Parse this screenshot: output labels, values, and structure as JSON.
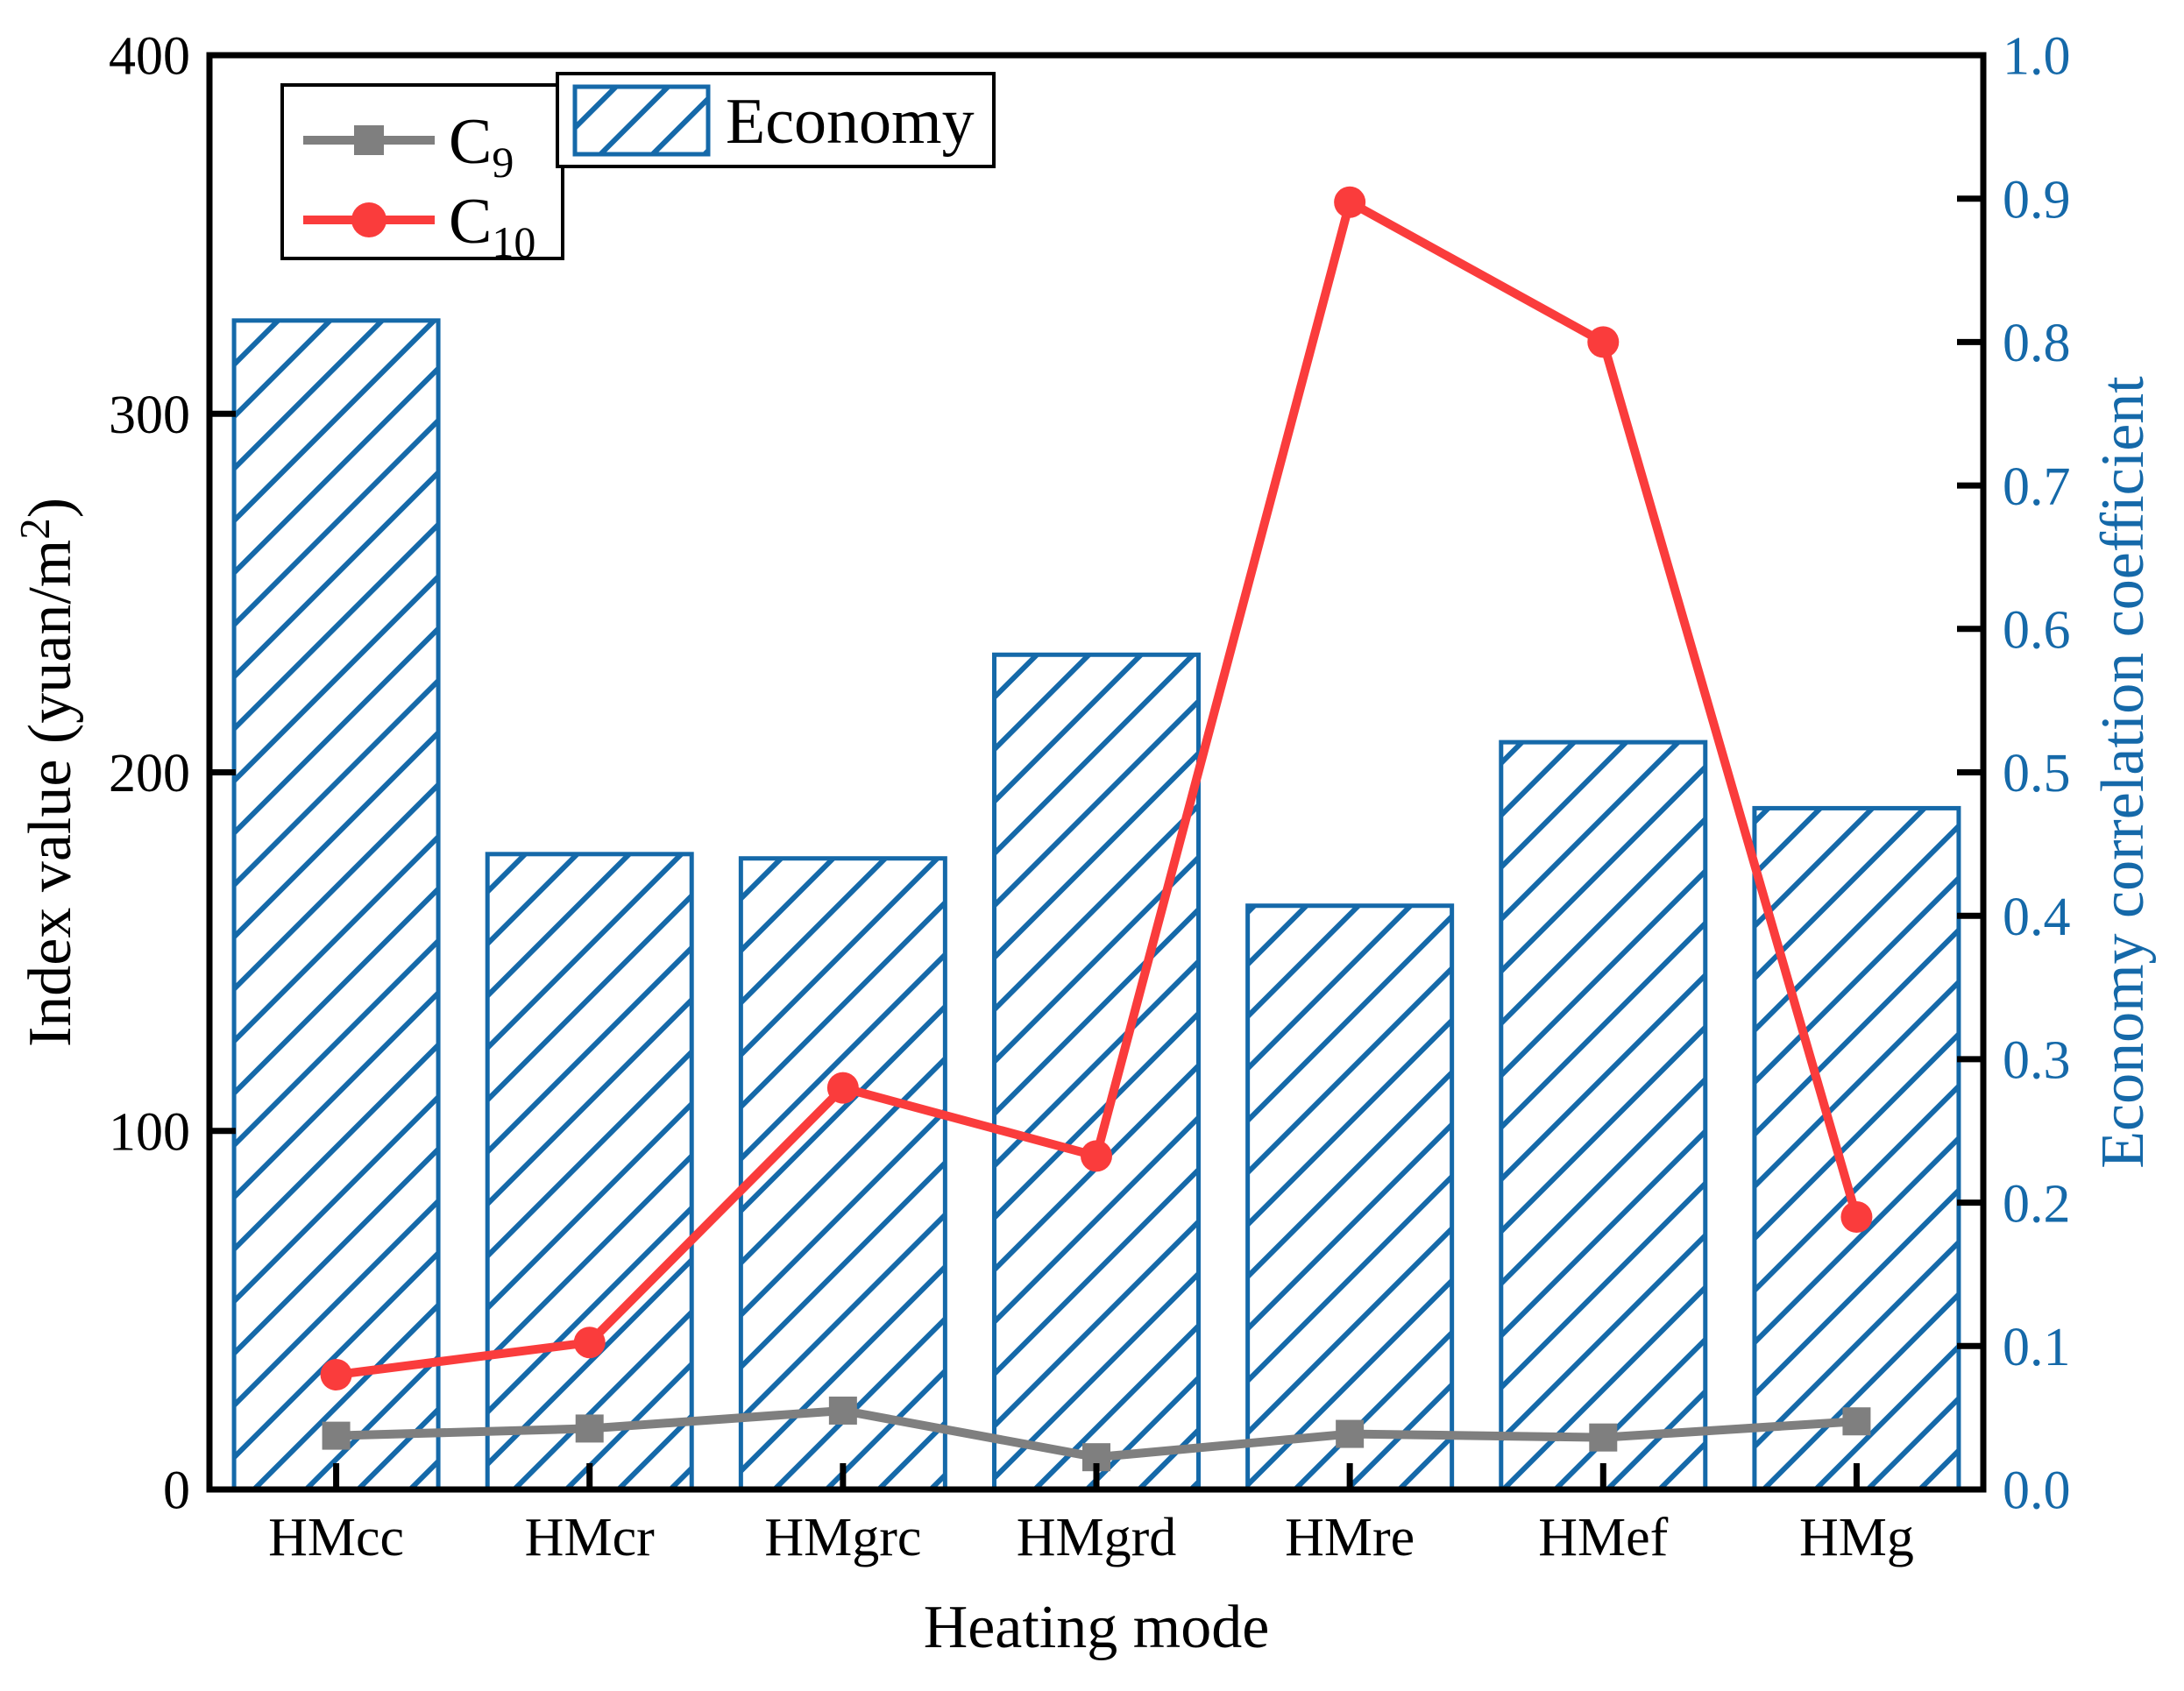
{
  "figure": {
    "background": "#ffffff",
    "border": "none"
  },
  "chart_data": {
    "type": "bar",
    "subtype": "bar+line combo, dual y-axis",
    "categories": [
      "HMcc",
      "HMcr",
      "HMgrc",
      "HMgrd",
      "HMre",
      "HMef",
      "HMg"
    ],
    "series": [
      {
        "name": "Economy",
        "type": "bar",
        "axis": "right",
        "values": [
          0.815,
          0.443,
          0.44,
          0.582,
          0.407,
          0.521,
          0.475
        ],
        "color": "#1569a9",
        "fill": "diagonal-hatch",
        "legend_label": "Economy"
      },
      {
        "name": "C9",
        "label_base": "C",
        "label_subscript": "9",
        "type": "line",
        "marker": "square",
        "axis": "left",
        "values": [
          15,
          17,
          22,
          9,
          15.5,
          14.5,
          19
        ],
        "color": "#7f7f7f"
      },
      {
        "name": "C10",
        "label_base": "C",
        "label_subscript": "10",
        "type": "line",
        "marker": "circle",
        "axis": "left",
        "values": [
          32,
          41,
          112,
          93,
          359,
          320,
          76
        ],
        "color": "#fa3c3c"
      }
    ],
    "xlabel": "Heating mode",
    "ylabel_left": {
      "text": "Index value (yuan/m",
      "superscript": "2",
      "after": ")"
    },
    "ylabel_right": "Economy correlation coefficient",
    "left_axis": {
      "min": 0,
      "max": 400,
      "tick_labels": [
        "0",
        "100",
        "200",
        "300",
        "400"
      ],
      "label_color": "#000000"
    },
    "right_axis": {
      "min": 0,
      "max": 1.0,
      "tick_labels": [
        "0.0",
        "0.1",
        "0.2",
        "0.3",
        "0.4",
        "0.5",
        "0.6",
        "0.7",
        "0.8",
        "0.9",
        "1.0"
      ],
      "label_color": "#1569a9"
    },
    "grid": false,
    "tick_direction": "in",
    "legend_line_box_position": "top-left-inside",
    "legend_bar_box_position": "top-inside-right-of-line-box",
    "colors": {
      "bar_blue": "#1569a9",
      "line_red": "#fa3c3c",
      "line_gray": "#7f7f7f",
      "axis_black": "#000000",
      "background": "#ffffff"
    }
  }
}
